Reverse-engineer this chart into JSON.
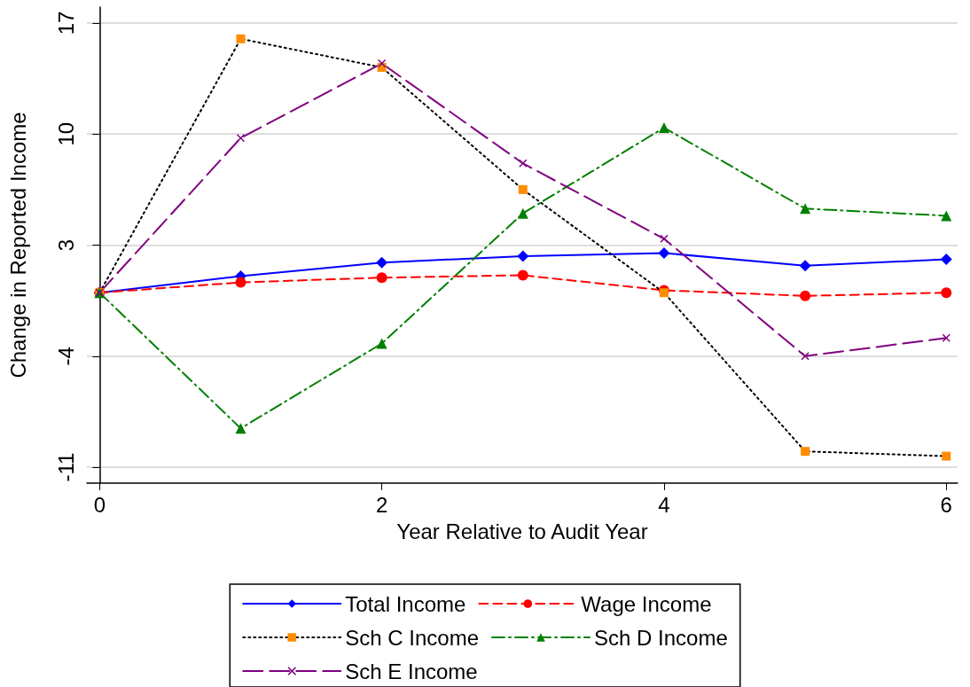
{
  "chart_data": {
    "type": "line",
    "xlabel": "Year Relative to Audit Year",
    "ylabel": "Change in Reported Income",
    "x": [
      0,
      1,
      2,
      3,
      4,
      5,
      6
    ],
    "xlim": [
      -0.09,
      6.08
    ],
    "xticks": [
      0,
      2,
      4,
      6
    ],
    "ylim": [
      -12,
      18
    ],
    "yticks": [
      -11,
      -4,
      3,
      10,
      17
    ],
    "grid": "y",
    "legend": "bottom",
    "series": [
      {
        "name": "Total Income",
        "color": "#0000ff",
        "marker": "diamond",
        "line_style": "solid",
        "values": [
          0,
          1.05,
          1.9,
          2.3,
          2.5,
          1.7,
          2.1
        ]
      },
      {
        "name": "Wage Income",
        "color": "#ff0000",
        "marker": "circle",
        "line_style": "dashed",
        "values": [
          0,
          0.65,
          0.95,
          1.1,
          0.15,
          -0.2,
          0
        ]
      },
      {
        "name": "Sch C Income",
        "color": "#000000",
        "marker": "square",
        "colors": [
          "#ff8c00",
          "#ff8c00",
          "#ff8c00",
          "#ff8c00",
          "#ff8c00",
          "#ff8c00",
          "#ff8c00"
        ],
        "line_style": "dotted",
        "values": [
          0,
          16.0,
          14.2,
          6.5,
          0,
          -10.0,
          -10.3
        ]
      },
      {
        "name": "Sch D Income",
        "color": "#008000",
        "marker": "triangle",
        "line_style": "dashdot",
        "values": [
          0,
          -8.55,
          -3.2,
          5.0,
          10.4,
          5.3,
          4.85
        ]
      },
      {
        "name": "Sch E Income",
        "color": "#800080",
        "marker": "cross",
        "line_style": "longdash",
        "values": [
          0,
          9.75,
          14.45,
          8.15,
          3.4,
          -4.0,
          -2.85
        ]
      }
    ]
  }
}
